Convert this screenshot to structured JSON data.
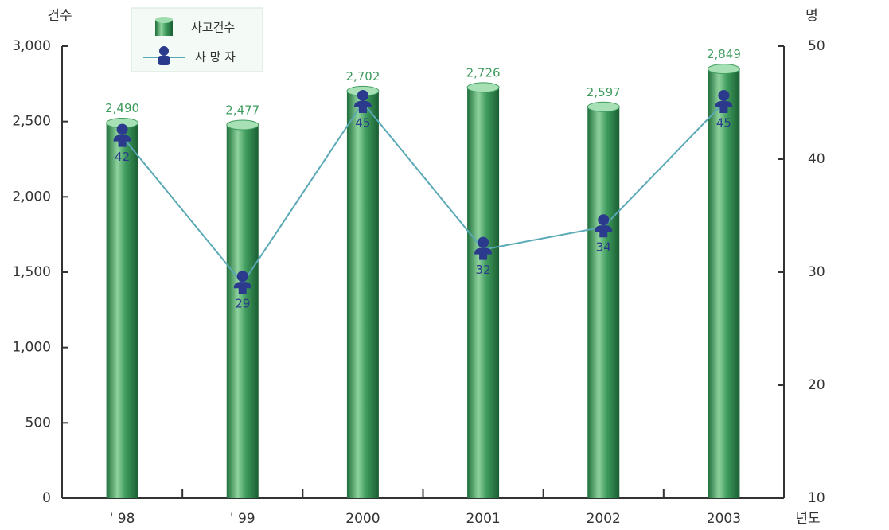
{
  "chart_data": {
    "type": "bar",
    "y_label": "건수",
    "y2_label": "명",
    "x_label": "년도",
    "categories": [
      "' 98",
      "' 99",
      "2000",
      "2001",
      "2002",
      "2003"
    ],
    "series": [
      {
        "name": "사고건수",
        "type": "bar",
        "color": "#3f9c5e",
        "axis": "y",
        "values": [
          2490,
          2477,
          2702,
          2726,
          2597,
          2849
        ],
        "value_labels": [
          "2,490",
          "2,477",
          "2,702",
          "2,726",
          "2,597",
          "2,849"
        ]
      },
      {
        "name": "사 망 자",
        "type": "line",
        "color": "#5aa9b6",
        "marker_color": "#2b3a8c",
        "axis": "y2",
        "values": [
          42,
          29,
          45,
          32,
          34,
          45
        ]
      }
    ],
    "ylim": [
      0,
      3000
    ],
    "yticks": [
      0,
      500,
      {
        "value": 1000,
        "label": "1,000"
      },
      {
        "value": 1500,
        "label": "1,500"
      },
      {
        "value": 2000,
        "label": "2,000"
      },
      {
        "value": 2500,
        "label": "2,500"
      },
      {
        "value": 3000,
        "label": "3,000"
      }
    ],
    "y2lim": [
      10,
      50
    ],
    "y2ticks": [
      10,
      20,
      30,
      40,
      50
    ],
    "grid": false
  }
}
